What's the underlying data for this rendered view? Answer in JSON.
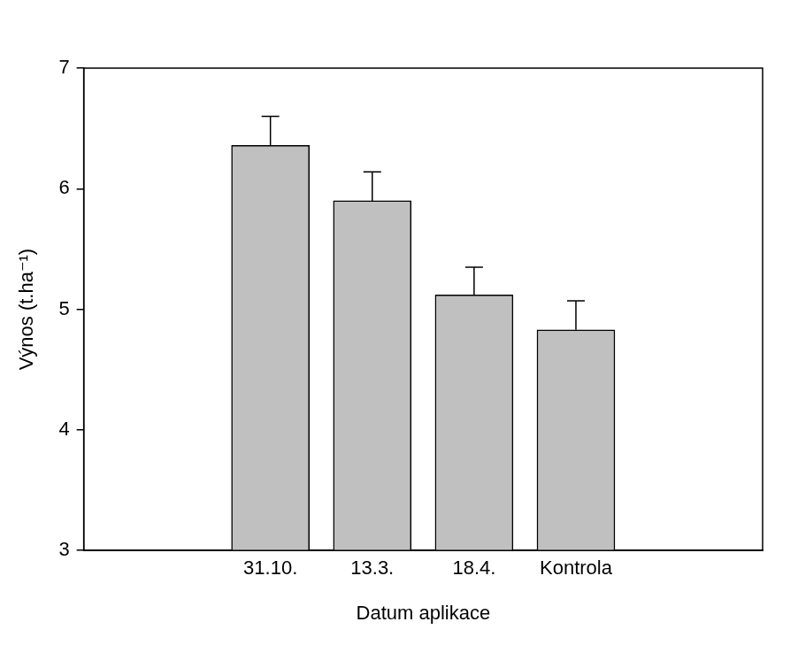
{
  "chart_data": {
    "type": "bar",
    "x_label": "Datum aplikace",
    "y_label": "Výnos (t.ha⁻¹)",
    "categories": [
      "31.10.",
      "13.3.",
      "18.4.",
      "Kontrola"
    ],
    "values": [
      6.36,
      5.9,
      5.12,
      4.83
    ],
    "error": [
      0.24,
      0.24,
      0.23,
      0.24
    ],
    "color": "#c0c0c0",
    "ylim": [
      3,
      7
    ],
    "yticks": [
      3,
      4,
      5,
      6,
      7
    ],
    "grid": false
  }
}
